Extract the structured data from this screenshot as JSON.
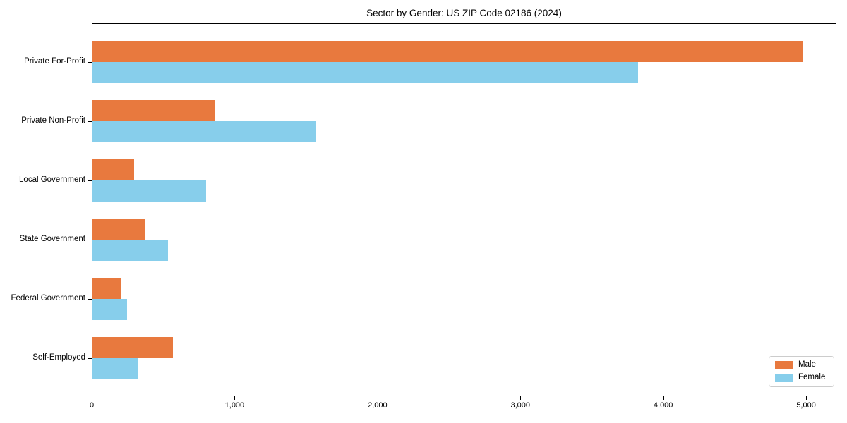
{
  "chart_data": {
    "type": "bar",
    "orientation": "horizontal",
    "title": "Sector by Gender: US ZIP Code 02186 (2024)",
    "categories": [
      "Private For-Profit",
      "Private Non-Profit",
      "Local Government",
      "State Government",
      "Federal Government",
      "Self-Employed"
    ],
    "series": [
      {
        "name": "Male",
        "color": "#e8793e",
        "values": [
          4970,
          860,
          290,
          365,
          200,
          565
        ]
      },
      {
        "name": "Female",
        "color": "#87ceeb",
        "values": [
          3820,
          1560,
          795,
          530,
          240,
          320
        ]
      }
    ],
    "xlabel": "",
    "ylabel": "",
    "x_ticks": [
      0,
      1000,
      2000,
      3000,
      4000,
      5000
    ],
    "x_tick_labels": [
      "0",
      "1,000",
      "2,000",
      "3,000",
      "4,000",
      "5,000"
    ],
    "xlim": [
      0,
      5212
    ],
    "grid": false,
    "legend_position": "lower right",
    "legend_entries": [
      "Male",
      "Female"
    ]
  }
}
